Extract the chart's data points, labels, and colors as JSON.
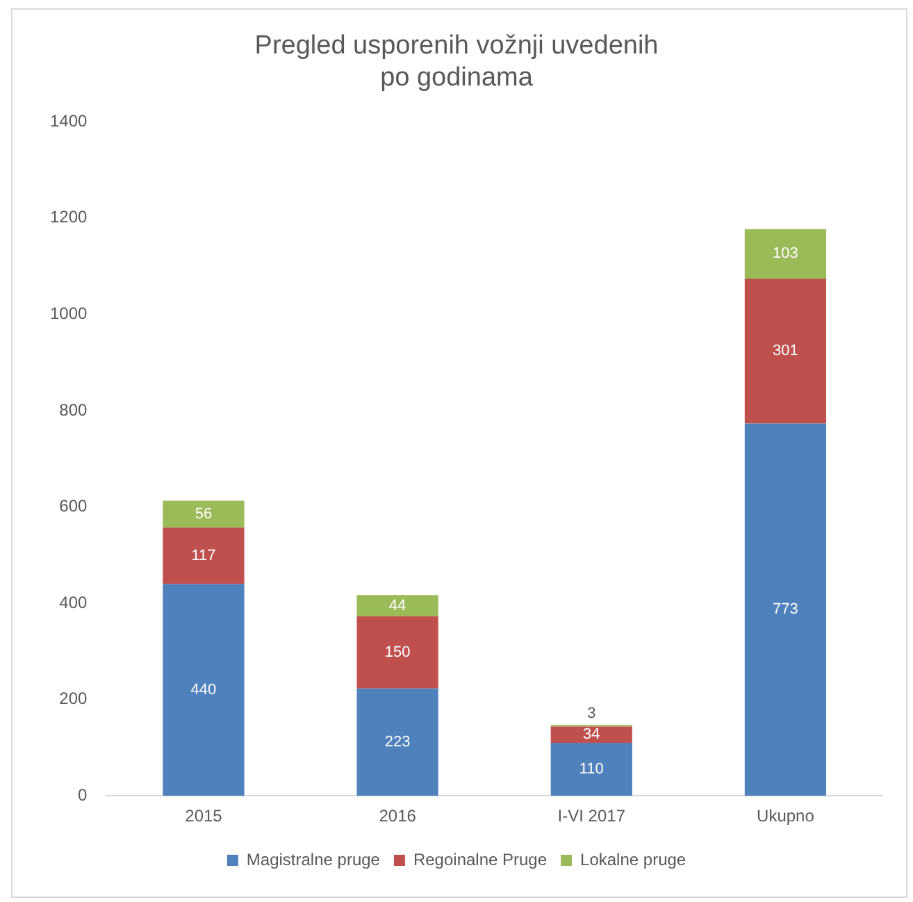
{
  "chart_data": {
    "type": "bar",
    "title": "Pregled usporenih vožnji uvedenih po godinama",
    "categories": [
      "2015",
      "2016",
      "I-VI 2017",
      "Ukupno"
    ],
    "stacked": true,
    "data_labels": true,
    "legend": "bottom",
    "grid": false,
    "ylim": [
      0,
      1400
    ],
    "yticks": [
      0,
      200,
      400,
      600,
      800,
      1000,
      1200,
      1400
    ],
    "series": [
      {
        "name": "Magistralne pruge",
        "color": "#4f81bd",
        "values": [
          440,
          223,
          110,
          773
        ]
      },
      {
        "name": "Regoinalne Pruge",
        "color": "#c0504d",
        "values": [
          117,
          150,
          34,
          301
        ]
      },
      {
        "name": "Lokalne pruge",
        "color": "#9bbb59",
        "values": [
          56,
          44,
          3,
          103
        ]
      }
    ]
  }
}
